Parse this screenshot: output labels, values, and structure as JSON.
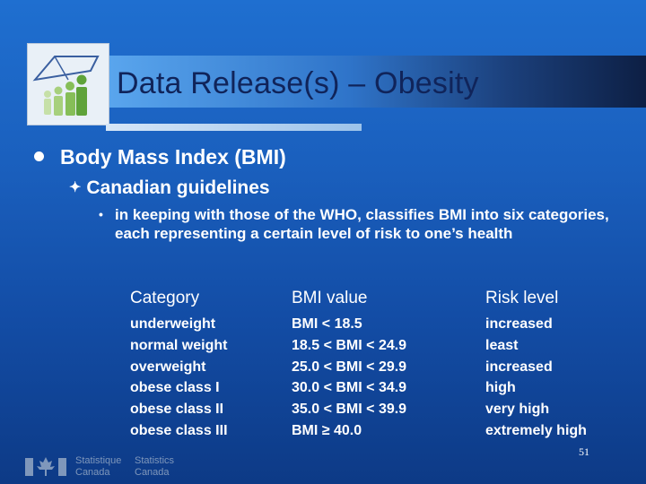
{
  "slide": {
    "title": "Data Release(s) – Obesity",
    "bullet_l1": "Body Mass Index (BMI)",
    "bullet_l2": "Canadian guidelines",
    "bullet_l3": "in keeping with those of the WHO, classifies BMI into six categories, each representing a certain level of risk to one’s health",
    "l2_marker": "✦",
    "l3_marker": "•"
  },
  "table": {
    "headers": [
      "Category",
      "BMI value",
      "Risk level"
    ],
    "rows": [
      [
        "underweight",
        "BMI < 18.5",
        "increased"
      ],
      [
        "normal weight",
        "18.5 < BMI < 24.9",
        "least"
      ],
      [
        "overweight",
        "25.0 < BMI < 29.9",
        "increased"
      ],
      [
        "obese class I",
        "30.0 < BMI < 34.9",
        "high"
      ],
      [
        "obese class II",
        "35.0 < BMI < 39.9",
        "very high"
      ],
      [
        "obese class III",
        "BMI ≥ 40.0",
        "extremely high"
      ]
    ]
  },
  "page_number": "51",
  "footer": {
    "fr_line1": "Statistique",
    "fr_line2": "Canada",
    "en_line1": "Statistics",
    "en_line2": "Canada"
  },
  "colors": {
    "background": "#1a5fbd",
    "title_text": "#10245a",
    "text": "#ffffff"
  }
}
